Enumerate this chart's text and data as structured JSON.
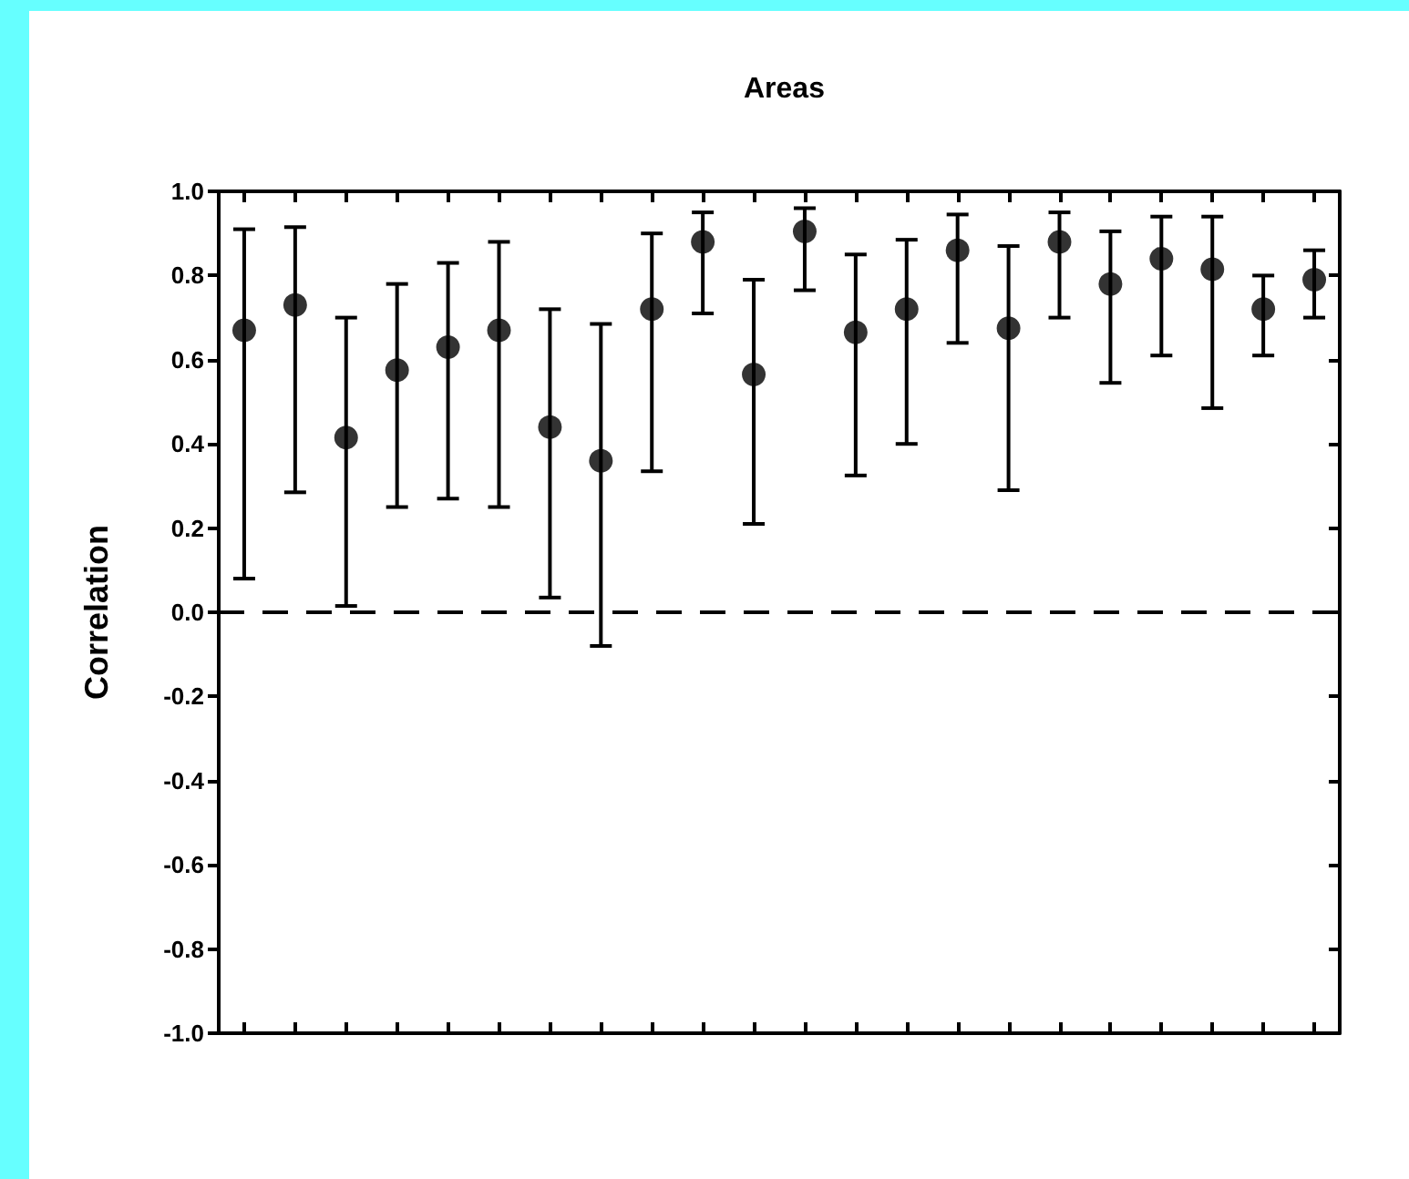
{
  "chart_data": {
    "type": "scatter",
    "title": "Areas",
    "ylabel": "Correlation",
    "categories": [
      null,
      null,
      null,
      null,
      null,
      null,
      null,
      null,
      null,
      null,
      null,
      null,
      null,
      null,
      null,
      null,
      null,
      null,
      null,
      null,
      null,
      null
    ],
    "series": [
      {
        "color": "#000000",
        "values": [
          0.67,
          0.73,
          0.415,
          0.575,
          0.63,
          0.67,
          0.44,
          0.36,
          0.72,
          0.88,
          0.565,
          0.905,
          0.665,
          0.72,
          0.86,
          0.675,
          0.88,
          0.78,
          0.84,
          0.815,
          0.72,
          0.79
        ],
        "errors": [
          [
            0.08,
            0.91
          ],
          [
            0.285,
            0.915
          ],
          [
            0.015,
            0.7
          ],
          [
            0.25,
            0.78
          ],
          [
            0.27,
            0.83
          ],
          [
            0.25,
            0.88
          ],
          [
            0.035,
            0.72
          ],
          [
            -0.08,
            0.685
          ],
          [
            0.335,
            0.9
          ],
          [
            0.71,
            0.95
          ],
          [
            0.21,
            0.79
          ],
          [
            0.765,
            0.96
          ],
          [
            0.325,
            0.85
          ],
          [
            0.4,
            0.885
          ],
          [
            0.64,
            0.945
          ],
          [
            0.29,
            0.87
          ],
          [
            0.7,
            0.95
          ],
          [
            0.545,
            0.905
          ],
          [
            0.61,
            0.94
          ],
          [
            0.485,
            0.94
          ],
          [
            0.61,
            0.8
          ],
          [
            0.7,
            0.86
          ]
        ]
      }
    ],
    "ylim": [
      -1.0,
      1.0
    ],
    "yticks": [
      {
        "value": -1.0,
        "label": "-1.0"
      },
      {
        "value": -0.8,
        "label": "-0.8"
      },
      {
        "value": -0.6,
        "label": "-0.6"
      },
      {
        "value": -0.4,
        "label": "-0.4"
      },
      {
        "value": -0.2,
        "label": "-0.2"
      },
      {
        "value": 0,
        "label": "0.0"
      },
      {
        "value": 0.2,
        "label": "0.2"
      },
      {
        "value": 0.4,
        "label": "0.4"
      },
      {
        "value": 0.6,
        "label": "0.6"
      },
      {
        "value": 0.8,
        "label": "0.8"
      },
      {
        "value": 1.0,
        "label": "1.0"
      }
    ],
    "tick_labels": "y",
    "grid": false,
    "marker": "circle",
    "ref_lines": [
      {
        "axis": "y",
        "value": 0,
        "line_style": "dashed",
        "color": "#000000"
      }
    ]
  }
}
